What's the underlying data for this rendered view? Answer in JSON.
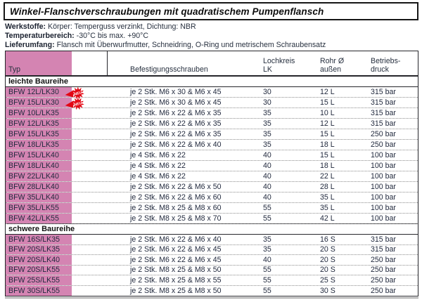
{
  "title": "Winkel-Flanschverschraubungen mit quadratischem Pumpenflansch",
  "info": [
    {
      "label": "Werkstoffe:",
      "text": "Körper: Temperguss verzinkt, Dichtung: NBR"
    },
    {
      "label": "Temperaturbereich:",
      "text": "-30°C bis max. +90°C"
    },
    {
      "label": "Lieferumfang:",
      "text": "Flansch mit Überwurfmutter, Schneidring, O-Ring und metrischem Schraubensatz"
    }
  ],
  "badge": {
    "label": "NEU",
    "color": "#e30613",
    "text_color": "#ffffff"
  },
  "colors": {
    "pink": "#d484b2",
    "rule_dark": "#26262b",
    "rule_dotted": "#8d8d8d",
    "text": "#222a3e"
  },
  "table": {
    "columns": {
      "typ": "Typ",
      "befestigung": "Befestigungsschrauben",
      "lochkreis": "Lochkreis\nLK",
      "rohr": "Rohr Ø\naußen",
      "druck": "Betriebs-\ndruck"
    },
    "sections": [
      {
        "name": "leichte Baureihe",
        "rows": [
          {
            "typ": "BFW 12L/LK30",
            "neu": true,
            "befestigung": "je 2 Stk. M6 x 30 & M6 x 45",
            "lochkreis": "30",
            "rohr": "12 L",
            "druck": "315 bar"
          },
          {
            "typ": "BFW 15L/LK30",
            "neu": true,
            "befestigung": "je 2 Stk. M6 x 30 & M6 x 45",
            "lochkreis": "30",
            "rohr": "15 L",
            "druck": "315 bar"
          },
          {
            "typ": "BFW 10L/LK35",
            "neu": false,
            "befestigung": "je 2 Stk. M6 x 22 & M6 x 35",
            "lochkreis": "35",
            "rohr": "10 L",
            "druck": "315 bar"
          },
          {
            "typ": "BFW 12L/LK35",
            "neu": false,
            "befestigung": "je 2 Stk. M6 x 22 & M6 x 35",
            "lochkreis": "35",
            "rohr": "12 L",
            "druck": "315 bar"
          },
          {
            "typ": "BFW 15L/LK35",
            "neu": false,
            "befestigung": "je 2 Stk. M6 x 22 & M6 x 35",
            "lochkreis": "35",
            "rohr": "15 L",
            "druck": "250 bar"
          },
          {
            "typ": "BFW 18L/LK35",
            "neu": false,
            "befestigung": "je 2 Stk. M6 x 22 & M6 x 40",
            "lochkreis": "35",
            "rohr": "18 L",
            "druck": "250 bar"
          },
          {
            "typ": "BFW 15L/LK40",
            "neu": false,
            "befestigung": "je 4 Stk. M6 x 22",
            "lochkreis": "40",
            "rohr": "15 L",
            "druck": "100 bar"
          },
          {
            "typ": "BFW 18L/LK40",
            "neu": false,
            "befestigung": "je 4 Stk. M6 x 22",
            "lochkreis": "40",
            "rohr": "18 L",
            "druck": "100 bar"
          },
          {
            "typ": "BFW 22L/LK40",
            "neu": false,
            "befestigung": "je 4 Stk. M6 x 22",
            "lochkreis": "40",
            "rohr": "22 L",
            "druck": "100 bar"
          },
          {
            "typ": "BFW 28L/LK40",
            "neu": false,
            "befestigung": "je 2 Stk. M6 x 22 & M6 x 50",
            "lochkreis": "40",
            "rohr": "28 L",
            "druck": "100 bar"
          },
          {
            "typ": "BFW 35L/LK40",
            "neu": false,
            "befestigung": "je 2 Stk. M6 x 22 & M6 x 60",
            "lochkreis": "40",
            "rohr": "35 L",
            "druck": "100 bar"
          },
          {
            "typ": "BFW 35L/LK55",
            "neu": false,
            "befestigung": "je 2 Stk. M8 x 25 & M8 x 60",
            "lochkreis": "55",
            "rohr": "35 L",
            "druck": "100 bar"
          },
          {
            "typ": "BFW 42L/LK55",
            "neu": false,
            "befestigung": "je 2 Stk. M8 x 25 & M8 x 70",
            "lochkreis": "55",
            "rohr": "42 L",
            "druck": "100 bar"
          }
        ]
      },
      {
        "name": "schwere Baureihe",
        "rows": [
          {
            "typ": "BFW 16S/LK35",
            "neu": false,
            "befestigung": "je 2 Stk. M6 x 22 & M6 x 40",
            "lochkreis": "35",
            "rohr": "16 S",
            "druck": "315 bar"
          },
          {
            "typ": "BFW 20S/LK35",
            "neu": false,
            "befestigung": "je 2 Stk. M6 x 22 & M6 x 45",
            "lochkreis": "35",
            "rohr": "20 S",
            "druck": "315 bar"
          },
          {
            "typ": "BFW 20S/LK40",
            "neu": false,
            "befestigung": "je 2 Stk. M6 x 22 & M6 x 45",
            "lochkreis": "40",
            "rohr": "20 S",
            "druck": "250 bar"
          },
          {
            "typ": "BFW 20S/LK55",
            "neu": false,
            "befestigung": "je 2 Stk. M8 x 25 & M8 x 50",
            "lochkreis": "55",
            "rohr": "20 S",
            "druck": "250 bar"
          },
          {
            "typ": "BFW 25S/LK55",
            "neu": false,
            "befestigung": "je 2 Stk. M8 x 25 & M8 x 55",
            "lochkreis": "55",
            "rohr": "25 S",
            "druck": "250 bar"
          },
          {
            "typ": "BFW 30S/LK55",
            "neu": false,
            "befestigung": "je 2 Stk. M8 x 25 & M8 x 50",
            "lochkreis": "55",
            "rohr": "30 S",
            "druck": "250 bar"
          }
        ]
      }
    ]
  }
}
